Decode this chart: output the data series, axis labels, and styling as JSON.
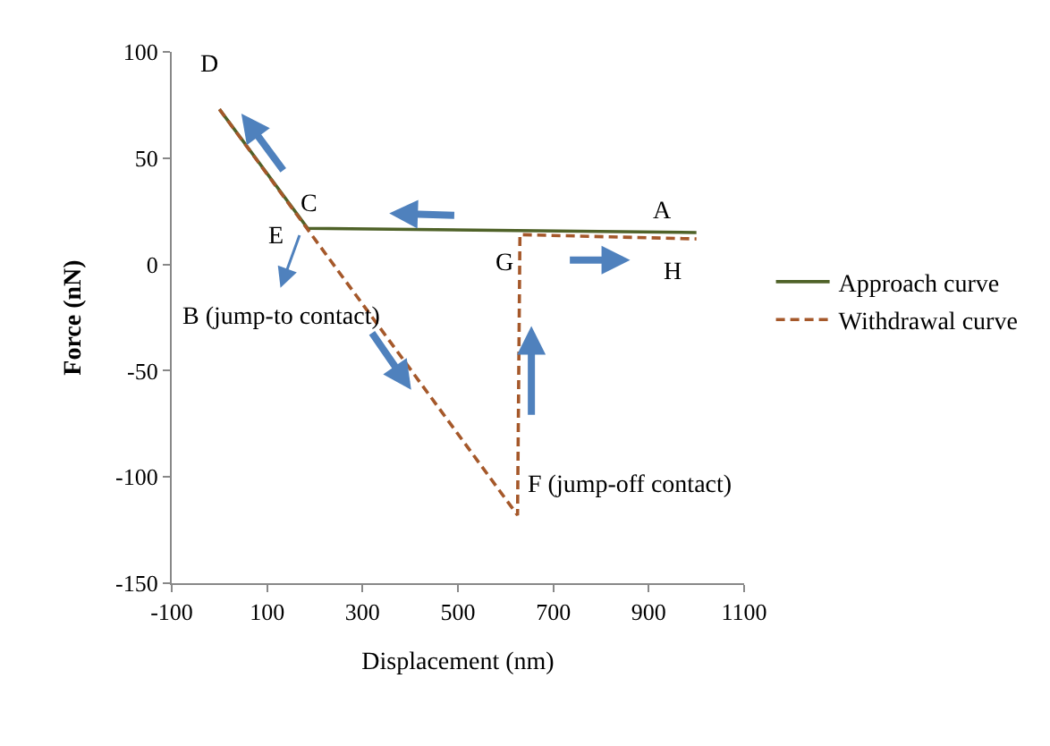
{
  "chart_data": {
    "type": "line",
    "xlabel": "Displacement (nm)",
    "ylabel": "Force (nN)",
    "xlim": [
      -100,
      1100
    ],
    "xticks": [
      -100,
      100,
      300,
      500,
      700,
      900,
      1100
    ],
    "ylim": [
      -150,
      100
    ],
    "yticks": [
      -150,
      -100,
      -50,
      0,
      50,
      100
    ],
    "legend": "right",
    "marker": "none",
    "series": [
      {
        "name": "Approach curve",
        "color": "#4f6228",
        "line_style": "solid",
        "x": [
          0,
          185,
          1000
        ],
        "values": [
          73,
          17,
          15
        ]
      },
      {
        "name": "Withdrawal curve",
        "color": "#a5582a",
        "line_style": "dashed",
        "x": [
          0,
          625,
          630,
          1000
        ],
        "values": [
          73,
          -118,
          14,
          12
        ]
      }
    ],
    "annotations": [
      "D",
      "C",
      "A",
      "E",
      "G",
      "H",
      "B (jump-to contact)",
      "F (jump-off contact)"
    ]
  }
}
